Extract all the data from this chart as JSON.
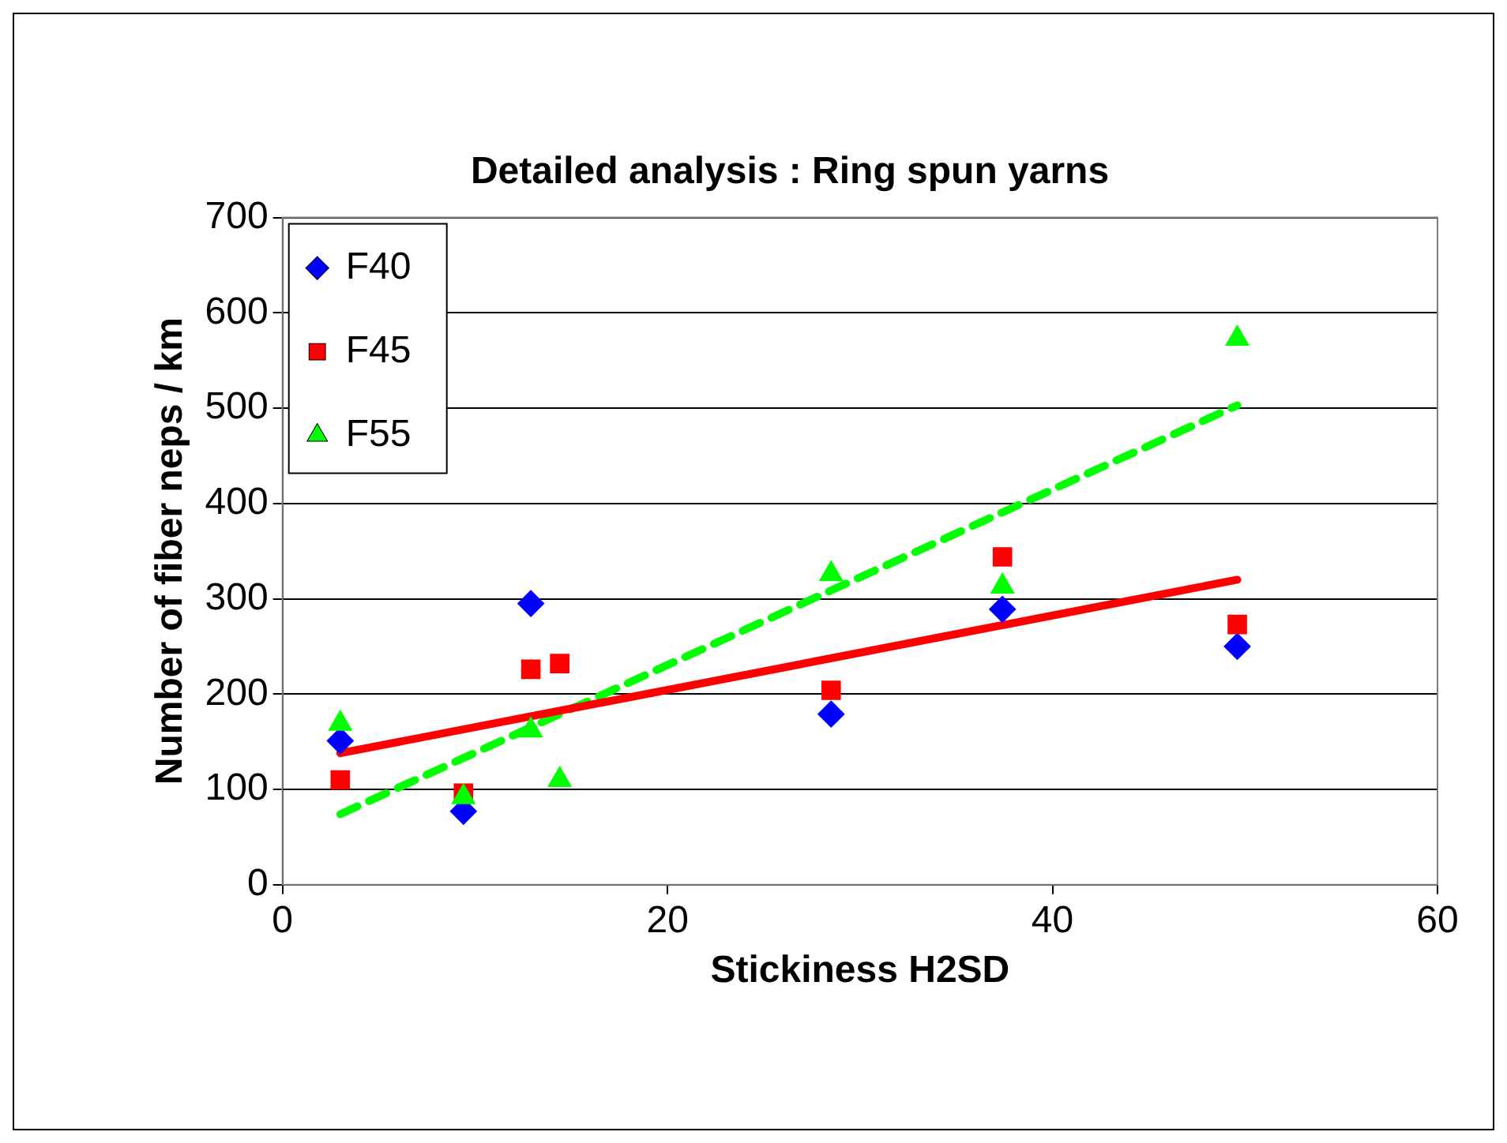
{
  "chart_data": {
    "type": "scatter",
    "title": "Detailed analysis : Ring spun yarns",
    "xlabel": "Stickiness H2SD",
    "ylabel": "Number of fiber neps / km",
    "xlim": [
      0,
      60
    ],
    "xticks": [
      0,
      20,
      40,
      60
    ],
    "ylim": [
      0,
      700
    ],
    "yticks": [
      0,
      100,
      200,
      300,
      400,
      500,
      600,
      700
    ],
    "grid": "y",
    "legend": "top left",
    "series": [
      {
        "name": "F40",
        "color": "#0000ff",
        "marker": "diamond",
        "x": [
          3,
          9.4,
          12.9,
          28.5,
          37.4,
          49.6
        ],
        "values": [
          151,
          77,
          295,
          179,
          289,
          250
        ]
      },
      {
        "name": "F45",
        "color": "#ff0000",
        "marker": "square",
        "x": [
          3,
          9.4,
          12.9,
          14.4,
          28.5,
          37.4,
          49.6
        ],
        "values": [
          110,
          96,
          226,
          232,
          204,
          344,
          273
        ]
      },
      {
        "name": "F55",
        "color": "#00ff00",
        "marker": "triangle",
        "x": [
          3,
          9.4,
          12.9,
          14.4,
          28.5,
          37.4,
          49.6
        ],
        "values": [
          169,
          92,
          162,
          110,
          326,
          313,
          573
        ]
      },
      {
        "type": "line",
        "color": "#ff0000",
        "line_style": "solid",
        "marker": "none",
        "x": [
          3,
          49.6
        ],
        "values": [
          138,
          320
        ]
      },
      {
        "type": "line",
        "color": "#00ff00",
        "line_style": "dashed",
        "marker": "none",
        "x": [
          3,
          49.6
        ],
        "values": [
          74,
          503
        ]
      }
    ]
  }
}
